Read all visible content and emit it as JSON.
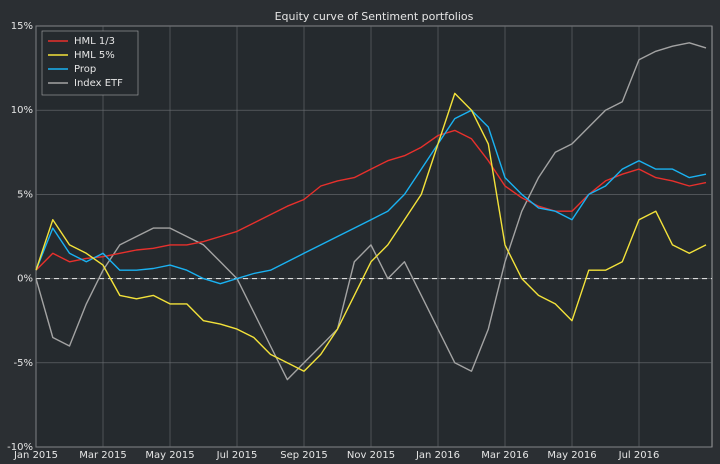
{
  "chart_data": {
    "type": "line",
    "title": "Equity curve of Sentiment portfolios",
    "categories": [
      "Jan 2015",
      null,
      null,
      null,
      "Mar 2015",
      null,
      null,
      null,
      "May 2015",
      null,
      null,
      null,
      "Jul 2015",
      null,
      null,
      null,
      "Sep 2015",
      null,
      null,
      null,
      "Nov 2015",
      null,
      null,
      null,
      "Jan 2016",
      null,
      null,
      null,
      "Mar 2016",
      null,
      null,
      null,
      "May 2016",
      null,
      null,
      null,
      "Jul 2016",
      null,
      null,
      null,
      null
    ],
    "series": [
      {
        "name": "HML 1/3",
        "color": "#e8302c",
        "values": [
          0.5,
          1.5,
          1.0,
          1.2,
          1.3,
          1.5,
          1.7,
          1.8,
          2.0,
          2.0,
          2.2,
          2.5,
          2.8,
          3.3,
          3.8,
          4.3,
          4.7,
          5.5,
          5.8,
          6.0,
          6.5,
          7.0,
          7.3,
          7.8,
          8.5,
          8.8,
          8.3,
          7.0,
          5.5,
          4.8,
          4.3,
          4.0,
          4.0,
          5.0,
          5.8,
          6.2,
          6.5,
          6.0,
          5.8,
          5.5,
          5.7
        ]
      },
      {
        "name": "HML 5%",
        "color": "#f3e23a",
        "values": [
          0.5,
          3.5,
          2.0,
          1.5,
          0.8,
          -1.0,
          -1.2,
          -1.0,
          -1.5,
          -1.5,
          -2.5,
          -2.7,
          -3.0,
          -3.5,
          -4.5,
          -5.0,
          -5.5,
          -4.5,
          -3.0,
          -1.0,
          1.0,
          2.0,
          3.5,
          5.0,
          8.0,
          11.0,
          10.0,
          8.0,
          2.0,
          0.0,
          -1.0,
          -1.5,
          -2.5,
          0.5,
          0.5,
          1.0,
          3.5,
          4.0,
          2.0,
          1.5,
          2.0
        ]
      },
      {
        "name": "Prop",
        "color": "#1ab2f2",
        "values": [
          0.5,
          3.0,
          1.5,
          1.0,
          1.5,
          0.5,
          0.5,
          0.6,
          0.8,
          0.5,
          0.0,
          -0.3,
          0.0,
          0.3,
          0.5,
          1.0,
          1.5,
          2.0,
          2.5,
          3.0,
          3.5,
          4.0,
          5.0,
          6.5,
          8.0,
          9.5,
          10.0,
          9.0,
          6.0,
          5.0,
          4.2,
          4.0,
          3.5,
          5.0,
          5.5,
          6.5,
          7.0,
          6.5,
          6.5,
          6.0,
          6.2
        ]
      },
      {
        "name": "Index ETF",
        "color": "#a3a3a3",
        "values": [
          0,
          -3.5,
          -4.0,
          -1.5,
          0.5,
          2.0,
          2.5,
          3.0,
          3.0,
          2.5,
          2.0,
          1.0,
          0.0,
          -2.0,
          -4.0,
          -6.0,
          -5.0,
          -4.0,
          -3.0,
          1.0,
          2.0,
          0.0,
          1.0,
          -1.0,
          -3.0,
          -5.0,
          -5.5,
          -3.0,
          1.0,
          4.0,
          6.0,
          7.5,
          8.0,
          9.0,
          10.0,
          10.5,
          13.0,
          13.5,
          13.8,
          14.0,
          13.7
        ]
      }
    ],
    "ylim": [
      -10,
      15
    ],
    "yticks": [
      {
        "value": -10,
        "label": "-10%"
      },
      {
        "value": -5,
        "label": "-5%"
      },
      {
        "value": 0,
        "label": "0%"
      },
      {
        "value": 5,
        "label": "5%"
      },
      {
        "value": 10,
        "label": "10%"
      },
      {
        "value": 15,
        "label": "15%"
      }
    ],
    "grid": true,
    "hline": 0,
    "legend": "upper left"
  }
}
